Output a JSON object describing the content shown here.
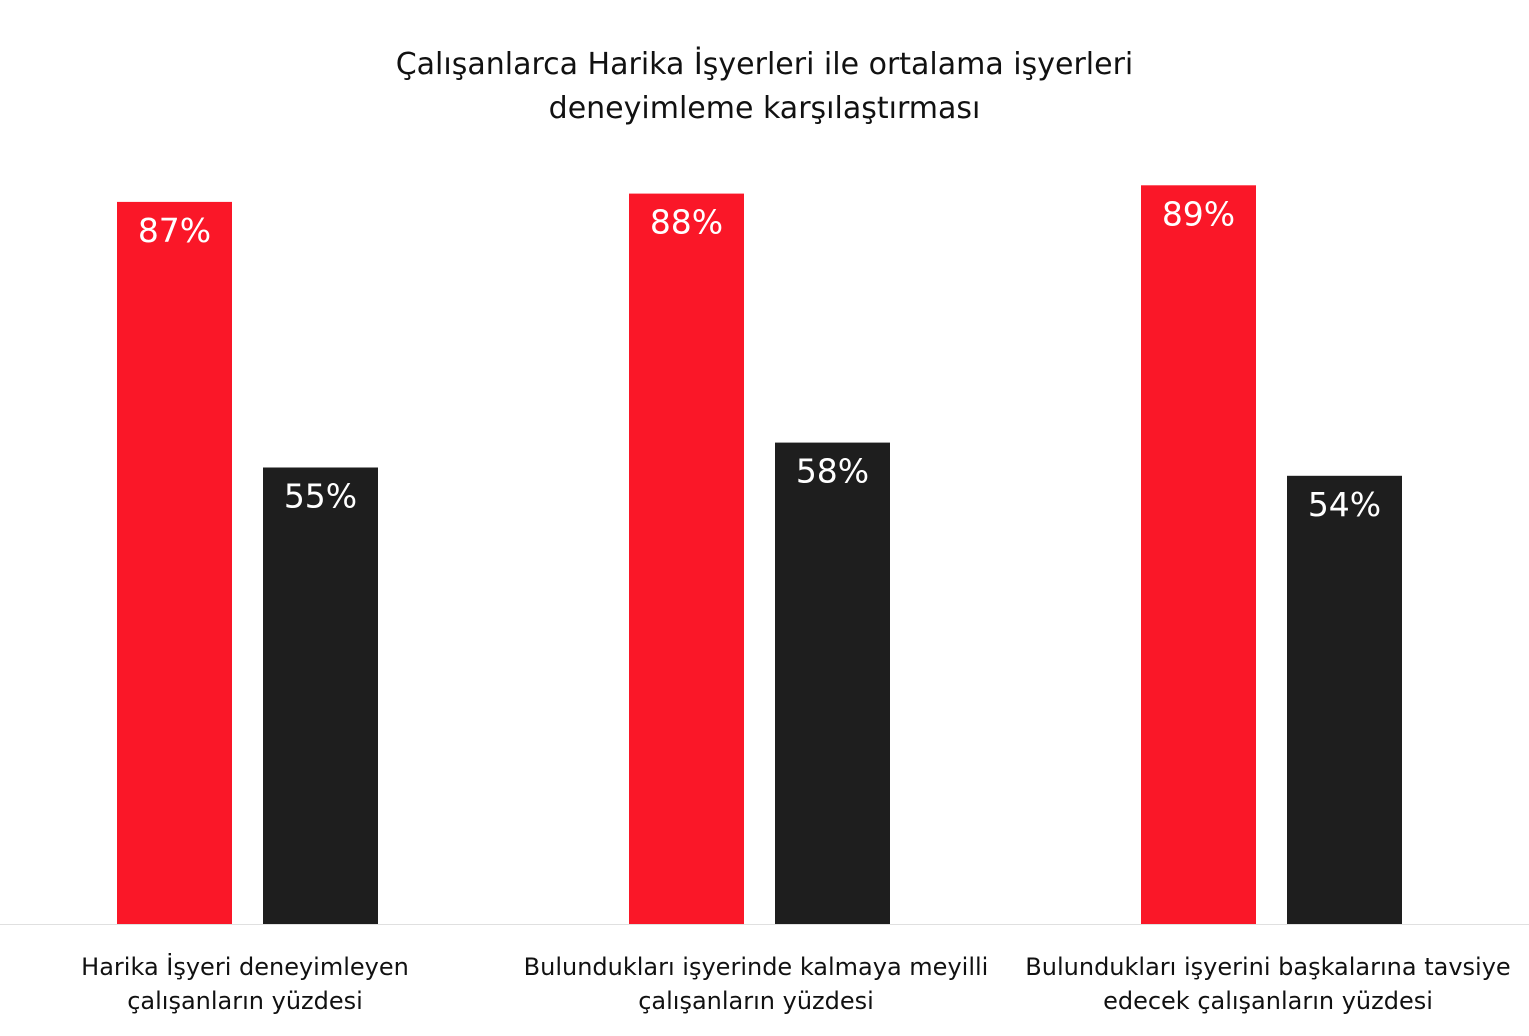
{
  "chart_data": {
    "type": "bar",
    "title_lines": [
      "Çalışanlarca Harika İşyerleri ile ortalama işyerleri",
      "deneyimleme karşılaştırması"
    ],
    "categories": [
      [
        "Harika İşyeri deneyimleyen",
        "çalışanların yüzdesi"
      ],
      [
        "Bulundukları işyerinde kalmaya meyilli",
        "çalışanların yüzdesi"
      ],
      [
        "Bulundukları işyerini başkalarına tavsiye",
        "edecek çalışanların yüzdesi"
      ]
    ],
    "series": [
      {
        "values": [
          87,
          88,
          89
        ],
        "labels": [
          "87%",
          "88%",
          "89%"
        ],
        "color": "#fa1728"
      },
      {
        "values": [
          55,
          58,
          54
        ],
        "labels": [
          "55%",
          "58%",
          "54%"
        ],
        "color": "#1e1e1e"
      }
    ],
    "ylim": [
      0,
      100
    ],
    "grid": false,
    "legend": "none",
    "data_label_color": "#ffffff",
    "axis_line_color": "#e0e0e0"
  }
}
